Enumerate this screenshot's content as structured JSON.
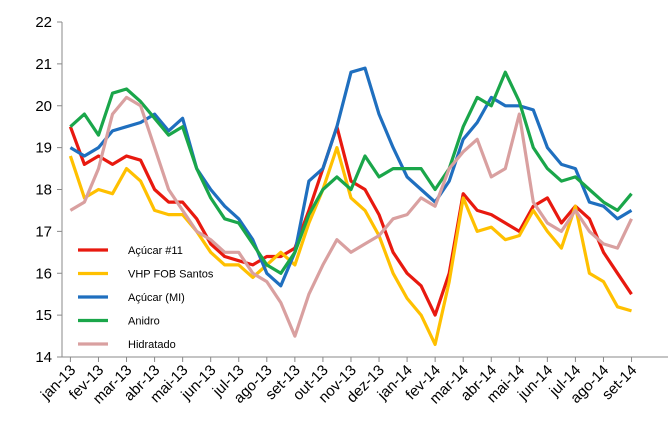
{
  "chart_data": {
    "type": "line",
    "x": [
      0,
      0.5,
      1,
      1.5,
      2,
      2.5,
      3,
      3.5,
      4,
      4.5,
      5,
      5.5,
      6,
      6.5,
      7,
      7.5,
      8,
      8.5,
      9,
      9.5,
      10,
      10.5,
      11,
      11.5,
      12,
      12.5,
      13,
      13.5,
      14,
      14.5,
      15,
      15.5,
      16,
      16.5,
      17,
      17.5,
      18,
      18.5,
      19,
      19.5,
      20
    ],
    "xlim": [
      -0.3,
      21.3
    ],
    "xticks": [
      {
        "value": 0,
        "label": "jan-13"
      },
      {
        "value": 1,
        "label": "fev-13"
      },
      {
        "value": 2,
        "label": "mar-13"
      },
      {
        "value": 3,
        "label": "abr-13"
      },
      {
        "value": 4,
        "label": "mai-13"
      },
      {
        "value": 5,
        "label": "jun-13"
      },
      {
        "value": 6,
        "label": "jul-13"
      },
      {
        "value": 7,
        "label": "ago-13"
      },
      {
        "value": 8,
        "label": "set-13"
      },
      {
        "value": 9,
        "label": "out-13"
      },
      {
        "value": 10,
        "label": "nov-13"
      },
      {
        "value": 11,
        "label": "dez-13"
      },
      {
        "value": 12,
        "label": "jan-14"
      },
      {
        "value": 13,
        "label": "fev-14"
      },
      {
        "value": 14,
        "label": "mar-14"
      },
      {
        "value": 15,
        "label": "abr-14"
      },
      {
        "value": 16,
        "label": "mai-14"
      },
      {
        "value": 17,
        "label": "jun-14"
      },
      {
        "value": 18,
        "label": "jul-14"
      },
      {
        "value": 19,
        "label": "ago-14"
      },
      {
        "value": 20,
        "label": "set-14"
      }
    ],
    "ylim": [
      14,
      22
    ],
    "yticks": [
      14,
      15,
      16,
      17,
      18,
      19,
      20,
      21,
      22
    ],
    "grid": false,
    "legend": "lower-left",
    "series": [
      {
        "name": "Açúcar #11",
        "color": "#e8190f",
        "values": [
          19.5,
          18.6,
          18.8,
          18.6,
          18.8,
          18.7,
          18.0,
          17.7,
          17.7,
          17.3,
          16.7,
          16.4,
          16.3,
          16.2,
          16.4,
          16.4,
          16.6,
          17.5,
          18.5,
          19.5,
          18.2,
          18.0,
          17.4,
          16.5,
          16.0,
          15.7,
          15.0,
          16.0,
          17.9,
          17.5,
          17.4,
          17.2,
          17.0,
          17.6,
          17.8,
          17.2,
          17.6,
          17.3,
          16.5,
          16.0,
          15.5
        ]
      },
      {
        "name": "VHP FOB Santos",
        "color": "#ffc000",
        "values": [
          18.8,
          17.8,
          18.0,
          17.9,
          18.5,
          18.2,
          17.5,
          17.4,
          17.4,
          17.0,
          16.5,
          16.2,
          16.2,
          15.9,
          16.2,
          16.5,
          16.2,
          17.2,
          18.0,
          19.0,
          17.8,
          17.5,
          16.9,
          16.0,
          15.4,
          15.0,
          14.3,
          15.8,
          17.8,
          17.0,
          17.1,
          16.8,
          16.9,
          17.5,
          17.0,
          16.6,
          17.6,
          16.0,
          15.8,
          15.2,
          15.1
        ]
      },
      {
        "name": "Açúcar (MI)",
        "color": "#1f6fbf",
        "values": [
          19.0,
          18.8,
          19.0,
          19.4,
          19.5,
          19.6,
          19.8,
          19.4,
          19.7,
          18.5,
          18.0,
          17.6,
          17.3,
          16.8,
          16.0,
          15.7,
          16.5,
          18.2,
          18.5,
          19.5,
          20.8,
          20.9,
          19.8,
          19.0,
          18.3,
          18.0,
          17.7,
          18.2,
          19.2,
          19.6,
          20.2,
          20.0,
          20.0,
          19.9,
          19.0,
          18.6,
          18.5,
          17.7,
          17.6,
          17.3,
          17.5
        ]
      },
      {
        "name": "Anidro",
        "color": "#1aa64a",
        "values": [
          19.5,
          19.8,
          19.3,
          20.3,
          20.4,
          20.1,
          19.7,
          19.3,
          19.5,
          18.5,
          17.8,
          17.3,
          17.2,
          16.7,
          16.2,
          16.0,
          16.5,
          17.4,
          18.0,
          18.3,
          18.0,
          18.8,
          18.3,
          18.5,
          18.5,
          18.5,
          18.0,
          18.5,
          19.5,
          20.2,
          20.0,
          20.8,
          20.1,
          19.0,
          18.5,
          18.2,
          18.3,
          18.0,
          17.7,
          17.5,
          17.9
        ]
      },
      {
        "name": "Hidratado",
        "color": "#d9a0a0",
        "values": [
          17.5,
          17.7,
          18.5,
          19.8,
          20.2,
          20.0,
          19.0,
          18.0,
          17.5,
          17.0,
          16.8,
          16.5,
          16.5,
          16.0,
          15.8,
          15.3,
          14.5,
          15.5,
          16.2,
          16.8,
          16.5,
          16.7,
          16.9,
          17.3,
          17.4,
          17.8,
          17.6,
          18.5,
          18.9,
          19.2,
          18.3,
          18.5,
          19.8,
          17.7,
          17.2,
          17.0,
          17.5,
          17.0,
          16.7,
          16.6,
          17.3
        ]
      }
    ]
  }
}
